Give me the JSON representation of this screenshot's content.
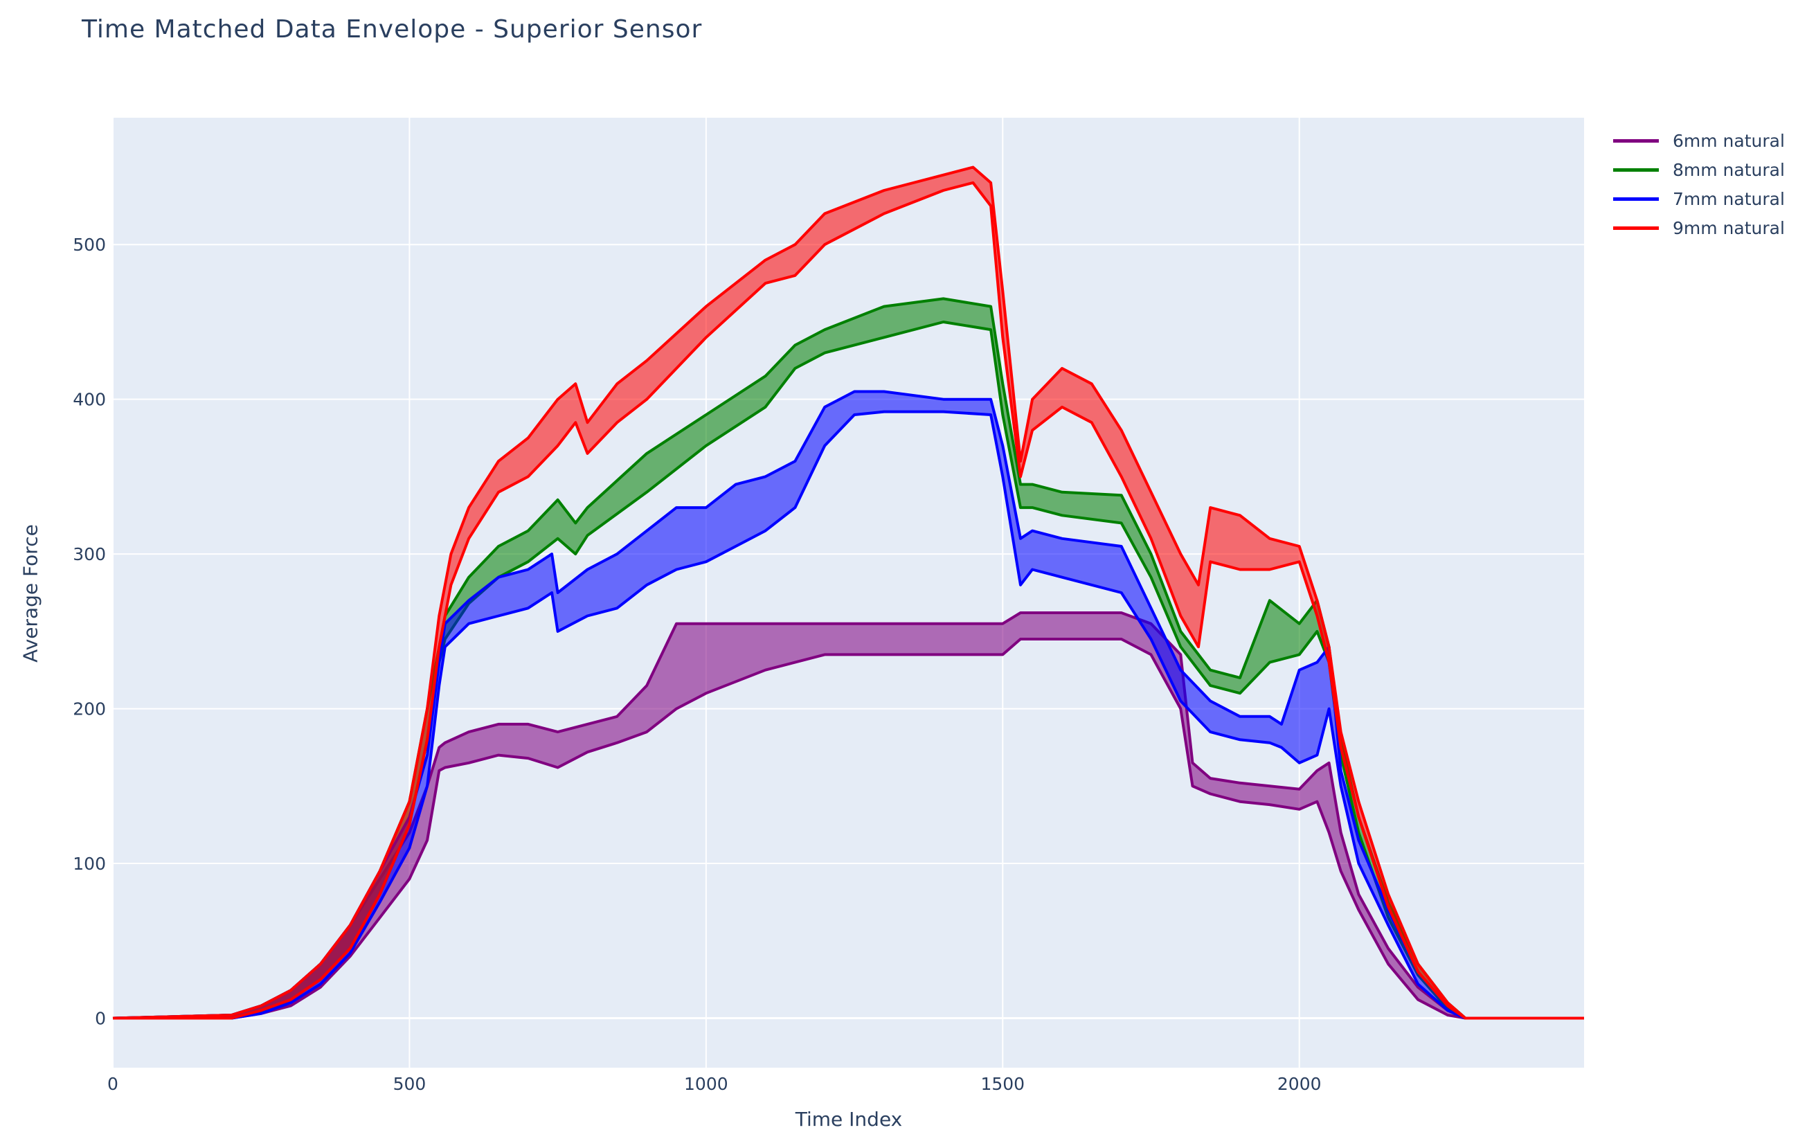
{
  "chart_data": {
    "type": "area",
    "title": "Time Matched Data Envelope - Superior Sensor",
    "xlabel": "Time Index",
    "ylabel": "Average Force",
    "xlim": [
      0,
      2480
    ],
    "ylim": [
      -32,
      582
    ],
    "x_ticks": [
      0,
      500,
      1000,
      1500,
      2000
    ],
    "y_ticks": [
      0,
      100,
      200,
      300,
      400,
      500
    ],
    "grid": true,
    "legend_position": "top-right",
    "plot_background": "#e5ecf6",
    "series": [
      {
        "name": "6mm natural",
        "color": "#800080",
        "fill": "rgba(128,0,128,0.55)",
        "x": [
          0,
          200,
          250,
          300,
          350,
          400,
          450,
          500,
          530,
          550,
          560,
          600,
          650,
          700,
          750,
          800,
          850,
          900,
          950,
          1000,
          1100,
          1200,
          1300,
          1400,
          1500,
          1530,
          1600,
          1700,
          1750,
          1800,
          1820,
          1850,
          1900,
          1950,
          2000,
          2030,
          2050,
          2070,
          2100,
          2150,
          2200,
          2250,
          2280,
          2480
        ],
        "upper": [
          0,
          2,
          8,
          18,
          35,
          60,
          90,
          120,
          150,
          175,
          178,
          185,
          190,
          190,
          185,
          190,
          195,
          215,
          255,
          255,
          255,
          255,
          255,
          255,
          255,
          262,
          262,
          262,
          255,
          235,
          165,
          155,
          152,
          150,
          148,
          160,
          165,
          120,
          80,
          45,
          20,
          5,
          0,
          0
        ],
        "lower": [
          0,
          0,
          3,
          8,
          20,
          40,
          65,
          90,
          115,
          160,
          162,
          165,
          170,
          168,
          162,
          172,
          178,
          185,
          200,
          210,
          225,
          235,
          235,
          235,
          235,
          245,
          245,
          245,
          235,
          200,
          150,
          145,
          140,
          138,
          135,
          140,
          120,
          95,
          70,
          35,
          12,
          2,
          0,
          0
        ]
      },
      {
        "name": "8mm natural",
        "color": "#008000",
        "fill": "rgba(0,128,0,0.55)",
        "x": [
          0,
          200,
          250,
          300,
          350,
          400,
          450,
          500,
          530,
          550,
          560,
          600,
          650,
          700,
          750,
          780,
          800,
          900,
          1000,
          1100,
          1150,
          1200,
          1300,
          1400,
          1480,
          1500,
          1530,
          1550,
          1600,
          1700,
          1750,
          1800,
          1850,
          1900,
          1950,
          2000,
          2030,
          2050,
          2070,
          2100,
          2150,
          2200,
          2250,
          2280,
          2480
        ],
        "upper": [
          0,
          2,
          8,
          18,
          35,
          60,
          95,
          140,
          200,
          240,
          260,
          285,
          305,
          315,
          335,
          320,
          330,
          365,
          390,
          415,
          435,
          445,
          460,
          465,
          460,
          410,
          345,
          345,
          340,
          338,
          300,
          250,
          225,
          220,
          270,
          255,
          270,
          240,
          180,
          130,
          75,
          35,
          10,
          0,
          0
        ],
        "lower": [
          0,
          0,
          4,
          12,
          25,
          45,
          80,
          125,
          180,
          230,
          245,
          268,
          285,
          295,
          310,
          300,
          312,
          340,
          370,
          395,
          420,
          430,
          440,
          450,
          445,
          390,
          330,
          330,
          325,
          320,
          285,
          240,
          215,
          210,
          230,
          235,
          250,
          230,
          170,
          120,
          65,
          28,
          6,
          0,
          0
        ]
      },
      {
        "name": "7mm natural",
        "color": "#0000ff",
        "fill": "rgba(0,0,255,0.55)",
        "x": [
          0,
          200,
          250,
          300,
          350,
          400,
          450,
          500,
          530,
          550,
          560,
          600,
          650,
          700,
          740,
          750,
          800,
          850,
          900,
          950,
          1000,
          1050,
          1100,
          1150,
          1200,
          1250,
          1300,
          1400,
          1480,
          1500,
          1530,
          1550,
          1600,
          1700,
          1750,
          1800,
          1850,
          1900,
          1950,
          1970,
          2000,
          2030,
          2050,
          2070,
          2100,
          2150,
          2200,
          2250,
          2280,
          2480
        ],
        "upper": [
          0,
          2,
          8,
          18,
          35,
          60,
          95,
          130,
          170,
          230,
          255,
          270,
          285,
          290,
          300,
          275,
          290,
          300,
          315,
          330,
          330,
          345,
          350,
          360,
          395,
          405,
          405,
          400,
          400,
          370,
          310,
          315,
          310,
          305,
          265,
          225,
          205,
          195,
          195,
          190,
          225,
          230,
          240,
          160,
          115,
          70,
          30,
          8,
          0,
          0
        ],
        "lower": [
          0,
          0,
          3,
          10,
          22,
          42,
          75,
          110,
          150,
          215,
          240,
          255,
          260,
          265,
          275,
          250,
          260,
          265,
          280,
          290,
          295,
          305,
          315,
          330,
          370,
          390,
          392,
          392,
          390,
          350,
          280,
          290,
          285,
          275,
          245,
          205,
          185,
          180,
          178,
          175,
          165,
          170,
          200,
          150,
          100,
          60,
          22,
          5,
          0,
          0
        ]
      },
      {
        "name": "9mm natural",
        "color": "#ff0000",
        "fill": "rgba(255,0,0,0.55)",
        "x": [
          0,
          200,
          250,
          300,
          350,
          400,
          450,
          500,
          530,
          550,
          570,
          600,
          650,
          700,
          750,
          780,
          800,
          850,
          900,
          1000,
          1100,
          1150,
          1200,
          1300,
          1400,
          1450,
          1480,
          1500,
          1530,
          1550,
          1600,
          1650,
          1700,
          1750,
          1800,
          1830,
          1850,
          1900,
          1950,
          2000,
          2030,
          2050,
          2070,
          2100,
          2150,
          2200,
          2250,
          2280,
          2480
        ],
        "upper": [
          0,
          2,
          8,
          18,
          35,
          60,
          95,
          140,
          200,
          260,
          300,
          330,
          360,
          375,
          400,
          410,
          385,
          410,
          425,
          460,
          490,
          500,
          520,
          535,
          545,
          550,
          540,
          470,
          360,
          400,
          420,
          410,
          380,
          340,
          300,
          280,
          330,
          325,
          310,
          305,
          270,
          240,
          185,
          140,
          80,
          35,
          10,
          0,
          0
        ],
        "lower": [
          0,
          0,
          5,
          12,
          25,
          45,
          80,
          125,
          180,
          240,
          280,
          310,
          340,
          350,
          370,
          385,
          365,
          385,
          400,
          440,
          475,
          480,
          500,
          520,
          535,
          540,
          525,
          440,
          350,
          380,
          395,
          385,
          350,
          310,
          260,
          240,
          295,
          290,
          290,
          295,
          260,
          230,
          175,
          130,
          72,
          30,
          8,
          0,
          0
        ]
      }
    ]
  }
}
